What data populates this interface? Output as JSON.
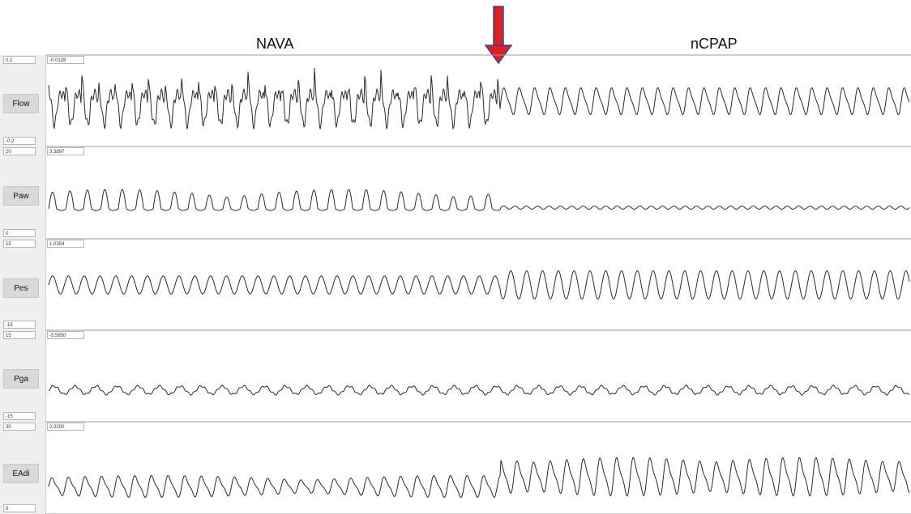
{
  "header": {
    "left_mode": "NAVA",
    "right_mode": "nCPAP"
  },
  "colors": {
    "trace": "#2a2a2a",
    "arrow": "#e02020",
    "arrow_outline": "#2b4c8c",
    "divider": "#9a9a9a"
  },
  "channels": [
    {
      "name": "Flow",
      "scale_max": "0.2",
      "scale_min": "-0.2",
      "cursor_value": "-0.0128"
    },
    {
      "name": "Paw",
      "scale_max": "20",
      "scale_min": "0",
      "cursor_value": "3.3897"
    },
    {
      "name": "Pes",
      "scale_max": "15",
      "scale_min": "-15",
      "cursor_value": "1.0354"
    },
    {
      "name": "Pga",
      "scale_max": "15",
      "scale_min": "-15",
      "cursor_value": "-5.5850"
    },
    {
      "name": "EAdi",
      "scale_max": "30",
      "scale_min": "0",
      "cursor_value": "2.0200"
    }
  ]
}
